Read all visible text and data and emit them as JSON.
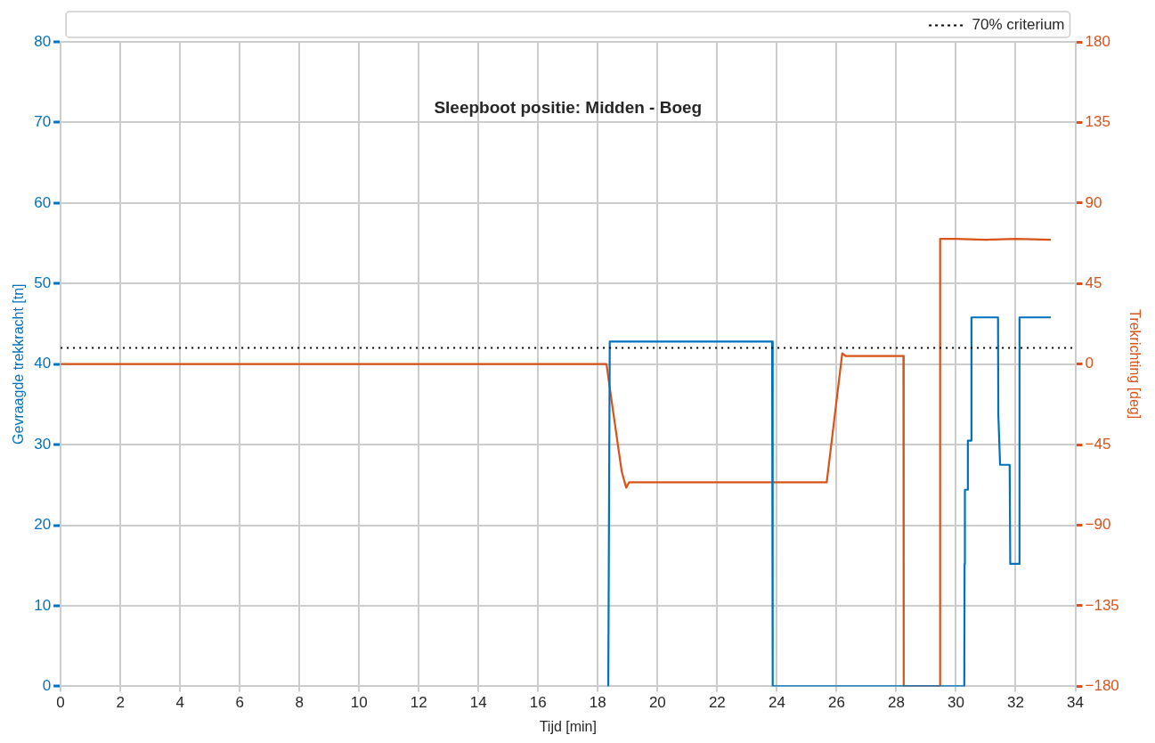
{
  "chart_data": {
    "type": "line",
    "title": "Sleepboot positie: Midden - Boeg",
    "xlabel": "Tijd [min]",
    "ylabel": "Gevraagde trekkracht [tn]",
    "y2label": "Trekrichting [deg]",
    "xlim": [
      0,
      34
    ],
    "xticks": [
      0,
      2,
      4,
      6,
      8,
      10,
      12,
      14,
      16,
      18,
      20,
      22,
      24,
      26,
      28,
      30,
      32,
      34
    ],
    "ylim": [
      0,
      80
    ],
    "yticks": [
      0,
      10,
      20,
      30,
      40,
      50,
      60,
      70,
      80
    ],
    "y2lim": [
      -180,
      180
    ],
    "y2ticks": [
      {
        "value": -180,
        "label": "−180"
      },
      {
        "value": -135,
        "label": "−135"
      },
      {
        "value": -90,
        "label": "−90"
      },
      {
        "value": -45,
        "label": "−45"
      },
      0,
      45,
      90,
      135,
      180
    ],
    "grid": true,
    "legend": "top right",
    "marker": "none",
    "line_style": "solid",
    "ref_lines": [
      {
        "axis": "y",
        "value": 42,
        "label": "70% criterium",
        "color": "#000000",
        "line_style": "dotted"
      }
    ],
    "series": [
      {
        "color": "#0072bd",
        "x": [
          18.35,
          18.4,
          23.84,
          23.86,
          30.28,
          30.29,
          30.3,
          30.38,
          30.4,
          30.5,
          30.52,
          30.6,
          30.62,
          31.41,
          31.42,
          31.48,
          31.5,
          31.8,
          31.82,
          32.11,
          32.13,
          33.18
        ],
        "values": [
          0,
          42.8,
          42.8,
          0,
          0,
          15.2,
          24.4,
          24.4,
          30.5,
          30.5,
          45.8,
          45.8,
          45.8,
          45.8,
          33.8,
          27.5,
          27.5,
          27.5,
          15.2,
          15.2,
          45.8,
          45.8
        ]
      },
      {
        "color": "#d95319",
        "axis": "y2",
        "x": [
          0,
          2,
          4,
          6,
          8,
          10,
          12,
          14,
          16,
          18.29,
          18.5,
          18.8,
          18.95,
          19.05,
          20,
          22,
          24,
          24.2,
          25.67,
          26.19,
          26.3,
          27,
          28.24,
          28.25,
          29.46,
          29.47,
          30,
          31,
          32,
          33.18
        ],
        "values": [
          0,
          0,
          0,
          0,
          0,
          0,
          0,
          0,
          0,
          0,
          -25,
          -60,
          -69,
          -66,
          -66,
          -66,
          -66,
          -66,
          -66,
          6,
          4.5,
          4.5,
          4.5,
          -180,
          -180,
          70,
          70,
          69.5,
          70,
          69.5
        ]
      }
    ]
  }
}
